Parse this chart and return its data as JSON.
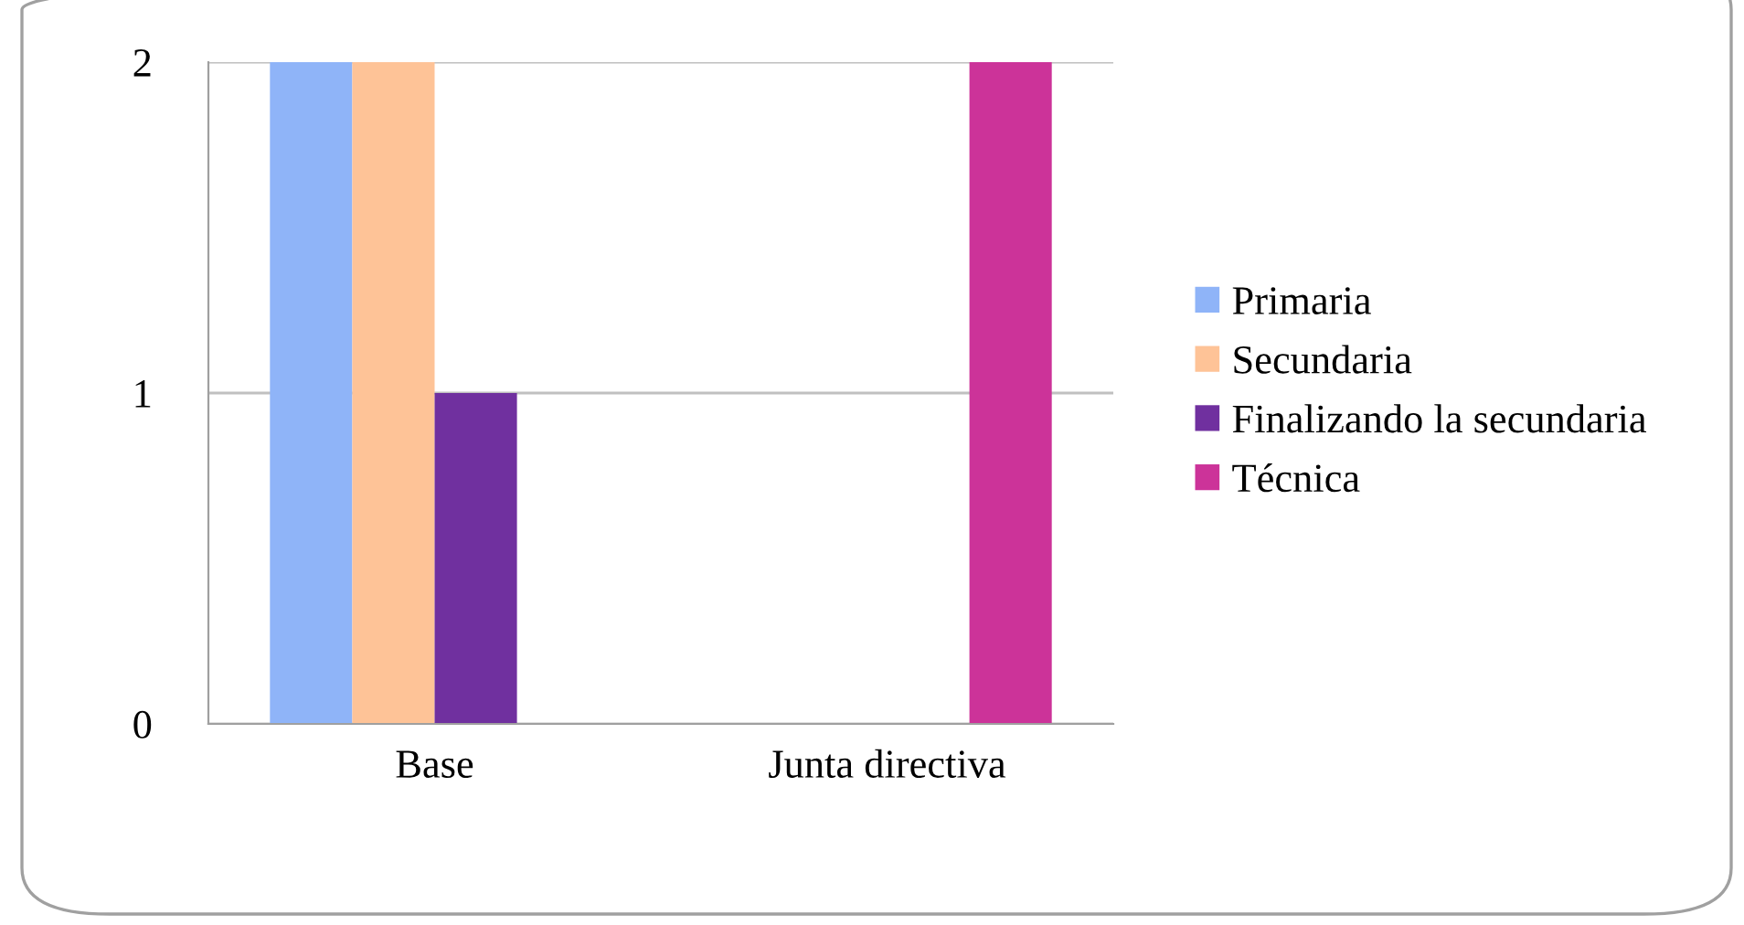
{
  "chart_data": {
    "type": "bar",
    "categories": [
      "Base",
      "Junta directiva"
    ],
    "series": [
      {
        "name": "Primaria",
        "color": "#8fb4f8",
        "values": [
          2,
          0
        ]
      },
      {
        "name": "Secundaria",
        "color": "#fec397",
        "values": [
          2,
          0
        ]
      },
      {
        "name": "Finalizando la secundaria",
        "color": "#70309f",
        "values": [
          1,
          0
        ]
      },
      {
        "name": "Técnica",
        "color": "#cc3399",
        "values": [
          0,
          2
        ]
      }
    ],
    "ylim": [
      0,
      2
    ],
    "yticks": [
      0,
      1,
      2
    ],
    "grid": "y",
    "legend": "right"
  }
}
